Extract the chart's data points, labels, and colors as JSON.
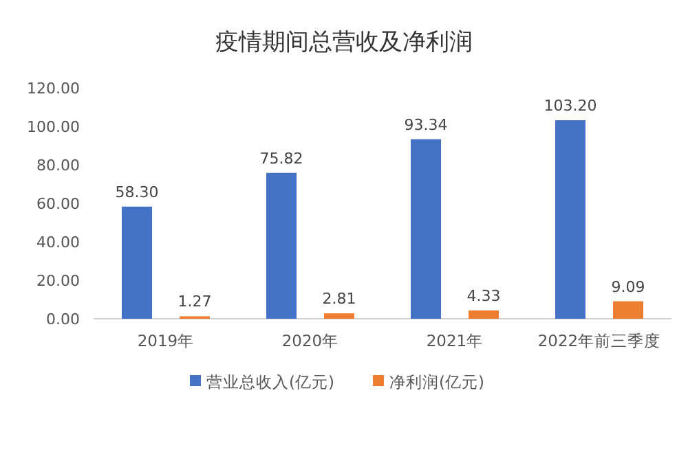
{
  "chart_data": {
    "type": "bar",
    "title": "疫情期间总营收及净利润",
    "categories": [
      "2019年",
      "2020年",
      "2021年",
      "2022年前三季度"
    ],
    "series": [
      {
        "name": "营业总收入(亿元)",
        "color": "#4472c4",
        "values": [
          58.3,
          75.82,
          93.34,
          103.2
        ],
        "value_labels": [
          "58.30",
          "75.82",
          "93.34",
          "103.20"
        ]
      },
      {
        "name": "净利润(亿元)",
        "color": "#ed7d31",
        "values": [
          1.27,
          2.81,
          4.33,
          9.09
        ],
        "value_labels": [
          "1.27",
          "2.81",
          "4.33",
          "9.09"
        ]
      }
    ],
    "ylim": [
      0,
      120
    ],
    "yticks": [
      {
        "value": 0,
        "label": "0.00"
      },
      {
        "value": 20,
        "label": "20.00"
      },
      {
        "value": 40,
        "label": "40.00"
      },
      {
        "value": 60,
        "label": "60.00"
      },
      {
        "value": 80,
        "label": "80.00"
      },
      {
        "value": 100,
        "label": "100.00"
      },
      {
        "value": 120,
        "label": "120.00"
      }
    ],
    "legend": "bottom"
  }
}
